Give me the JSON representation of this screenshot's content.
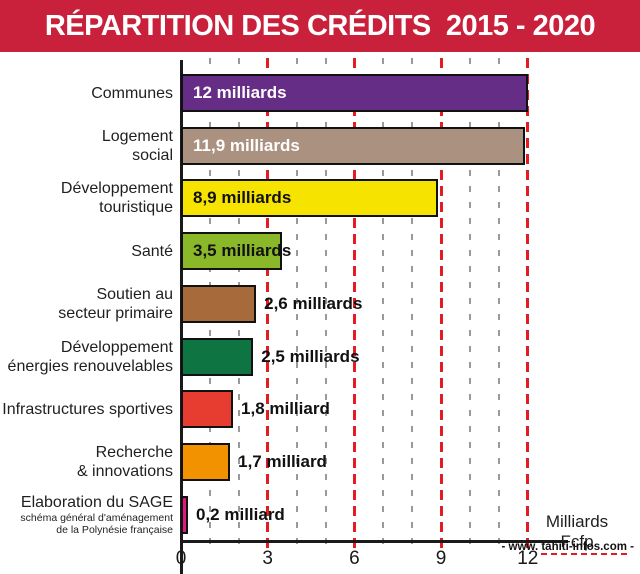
{
  "header": {
    "title": "RÉPARTITION DES CRÉDITS  2015 - 2020",
    "bg_color": "#c9203c",
    "text_color": "#ffffff"
  },
  "chart_data": {
    "type": "bar",
    "orientation": "horizontal",
    "title": "RÉPARTITION DES CRÉDITS 2015 - 2020",
    "unit_label_lines": [
      "Milliards",
      "Fcfp"
    ],
    "xlim": [
      0,
      12.75
    ],
    "x_ticks": [
      0,
      3,
      6,
      9,
      12
    ],
    "grid": {
      "minor_every": 1,
      "major_every": 3,
      "minor_color": "#9a9a9a",
      "major_color": "#e41b23",
      "style": "dashed"
    },
    "bars": [
      {
        "category_lines": [
          "Communes"
        ],
        "value": 12,
        "label": "12 milliards",
        "color": "#662d87",
        "label_color": "#ffffff",
        "label_placement": "inside"
      },
      {
        "category_lines": [
          "Logement",
          "social"
        ],
        "value": 11.9,
        "label": "11,9 milliards",
        "color": "#ab9180",
        "label_color": "#ffffff",
        "label_placement": "inside"
      },
      {
        "category_lines": [
          "Développement",
          "touristique"
        ],
        "value": 8.9,
        "label": "8,9 milliards",
        "color": "#f6e400",
        "label_color": "#111111",
        "label_placement": "inside"
      },
      {
        "category_lines": [
          "Santé"
        ],
        "value": 3.5,
        "label": "3,5 milliards",
        "color": "#8bb829",
        "label_color": "#111111",
        "label_placement": "inside"
      },
      {
        "category_lines": [
          "Soutien au",
          "secteur primaire"
        ],
        "value": 2.6,
        "label": "2,6 milliards",
        "color": "#a76b3b",
        "label_color": "#111111",
        "label_placement": "outside"
      },
      {
        "category_lines": [
          "Développement",
          "énergies renouvelables"
        ],
        "value": 2.5,
        "label": "2,5 milliards",
        "color": "#0d7442",
        "label_color": "#111111",
        "label_placement": "outside"
      },
      {
        "category_lines": [
          "Infrastructures sportives"
        ],
        "value": 1.8,
        "label": "1,8 milliard",
        "color": "#e73c30",
        "label_color": "#111111",
        "label_placement": "outside"
      },
      {
        "category_lines": [
          "Recherche",
          "& innovations"
        ],
        "value": 1.7,
        "label": "1,7 milliard",
        "color": "#f39200",
        "label_color": "#111111",
        "label_placement": "outside"
      },
      {
        "category_lines": [
          "Elaboration du SAGE"
        ],
        "category_sublines": [
          "schéma général d'aménagement",
          "de la Polynésie française"
        ],
        "value": 0.2,
        "label": "0,2 milliard",
        "color": "#e2187e",
        "label_color": "#111111",
        "label_placement": "outside"
      }
    ]
  },
  "footer": {
    "watermark_prefix": "- www. ",
    "watermark_site": "tahiti-infos.com",
    "watermark_suffix": " -"
  }
}
